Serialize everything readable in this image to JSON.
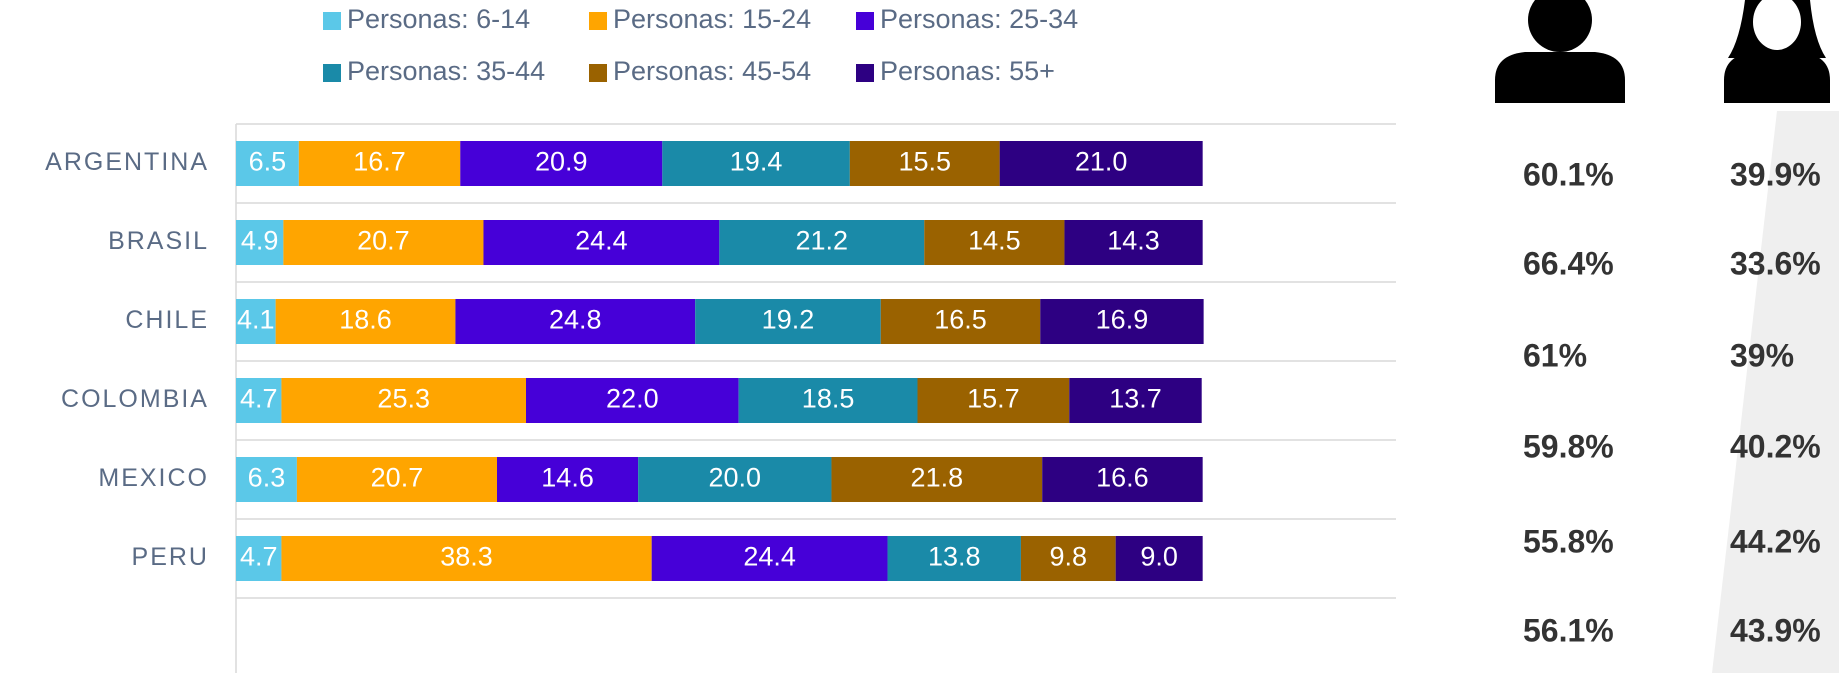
{
  "chart_data": {
    "type": "stacked-barh",
    "categories": [
      "ARGENTINA",
      "BRASIL",
      "CHILE",
      "COLOMBIA",
      "MEXICO",
      "PERU"
    ],
    "series": [
      {
        "name": "Personas: 6-14",
        "color": "#5bc8e8",
        "values": [
          6.5,
          4.9,
          4.1,
          4.7,
          6.3,
          4.7
        ],
        "value_labels": [
          "6.5",
          "4.9",
          "4.1",
          "4.7",
          "6.3",
          "4.7"
        ]
      },
      {
        "name": "Personas: 15-24",
        "color": "#ffa500",
        "values": [
          16.7,
          20.7,
          18.6,
          25.3,
          20.7,
          38.3
        ],
        "value_labels": [
          "16.7",
          "20.7",
          "18.6",
          "25.3",
          "20.7",
          "38.3"
        ]
      },
      {
        "name": "Personas: 25-34",
        "color": "#4600d8",
        "values": [
          20.9,
          24.4,
          24.8,
          22.0,
          14.6,
          24.4
        ],
        "value_labels": [
          "20.9",
          "24.4",
          "24.8",
          "22.0",
          "14.6",
          "24.4"
        ]
      },
      {
        "name": "Personas: 35-44",
        "color": "#1a8aa8",
        "values": [
          19.4,
          21.2,
          19.2,
          18.5,
          20.0,
          13.8
        ],
        "value_labels": [
          "19.4",
          "21.2",
          "19.2",
          "18.5",
          "20.0",
          "13.8"
        ]
      },
      {
        "name": "Personas: 45-54",
        "color": "#9a6200",
        "values": [
          15.5,
          14.5,
          16.5,
          15.7,
          21.8,
          9.8
        ],
        "value_labels": [
          "15.5",
          "14.5",
          "16.5",
          "15.7",
          "21.8",
          "9.8"
        ]
      },
      {
        "name": "Personas: 55+",
        "color": "#2d0082",
        "values": [
          21.0,
          14.3,
          16.9,
          13.7,
          16.6,
          9.0
        ],
        "value_labels": [
          "21.0",
          "14.3",
          "16.9",
          "13.7",
          "16.6",
          "9.0"
        ]
      }
    ],
    "xlim": [
      0,
      120
    ],
    "legend": "top"
  },
  "gender_table": {
    "rows": [
      [
        "60.1%",
        "39.9%"
      ],
      [
        "66.4%",
        "33.6%"
      ],
      [
        "61%",
        "39%"
      ],
      [
        "59.8%",
        "40.2%"
      ],
      [
        "55.8%",
        "44.2%"
      ],
      [
        "56.1%",
        "43.9%"
      ]
    ]
  }
}
